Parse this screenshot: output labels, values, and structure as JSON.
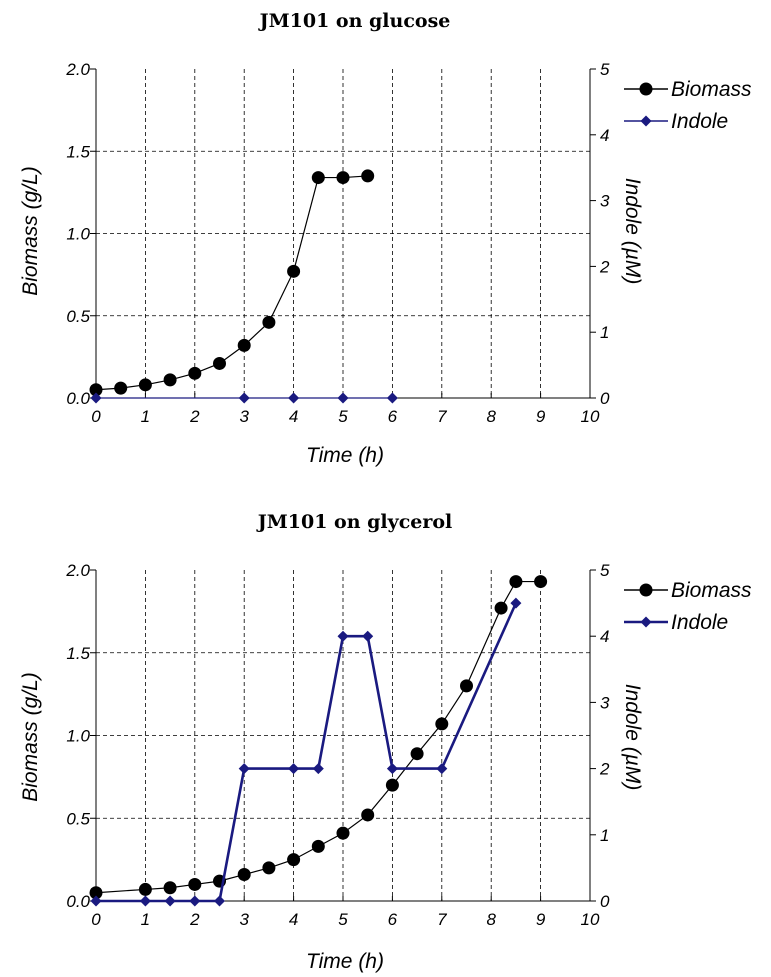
{
  "chart_data": [
    {
      "type": "line",
      "title": "JM101 on glucose",
      "xlabel": "Time (h)",
      "ylabel": "Biomass (g/L)",
      "y2label": "Indole (µM)",
      "xlim": [
        0,
        10
      ],
      "ylim": [
        0,
        2.0
      ],
      "y2lim": [
        0,
        5
      ],
      "x_ticks": [
        "0",
        "1",
        "2",
        "3",
        "4",
        "5",
        "6",
        "7",
        "8",
        "9",
        "10"
      ],
      "y_ticks": [
        "0.0",
        "0.5",
        "1.0",
        "1.5",
        "2.0"
      ],
      "y2_ticks": [
        "0",
        "1",
        "2",
        "3",
        "4",
        "5"
      ],
      "grid": true,
      "legend_position": "right",
      "series": [
        {
          "name": "Biomass",
          "axis": "left",
          "color": "#000000",
          "marker": "circle",
          "points": [
            [
              0,
              0.05
            ],
            [
              0.5,
              0.06
            ],
            [
              1,
              0.08
            ],
            [
              1.5,
              0.11
            ],
            [
              2,
              0.15
            ],
            [
              2.5,
              0.21
            ],
            [
              3,
              0.32
            ],
            [
              3.5,
              0.46
            ],
            [
              4,
              0.77
            ],
            [
              4.5,
              1.34
            ],
            [
              5,
              1.34
            ],
            [
              5.5,
              1.35
            ]
          ]
        },
        {
          "name": "Indole",
          "axis": "right",
          "color": "#1a1a80",
          "marker": "diamond",
          "points": [
            [
              0,
              0
            ],
            [
              3,
              0
            ],
            [
              4,
              0
            ],
            [
              5,
              0
            ],
            [
              6,
              0
            ]
          ]
        }
      ]
    },
    {
      "type": "line",
      "title": "JM101 on glycerol",
      "xlabel": "Time (h)",
      "ylabel": "Biomass (g/L)",
      "y2label": "Indole (µM)",
      "xlim": [
        0,
        10
      ],
      "ylim": [
        0,
        2.0
      ],
      "y2lim": [
        0,
        5
      ],
      "x_ticks": [
        "0",
        "1",
        "2",
        "3",
        "4",
        "5",
        "6",
        "7",
        "8",
        "9",
        "10"
      ],
      "y_ticks": [
        "0.0",
        "0.5",
        "1.0",
        "1.5",
        "2.0"
      ],
      "y2_ticks": [
        "0",
        "1",
        "2",
        "3",
        "4",
        "5"
      ],
      "grid": true,
      "legend_position": "right",
      "series": [
        {
          "name": "Biomass",
          "axis": "left",
          "color": "#000000",
          "marker": "circle",
          "points": [
            [
              0,
              0.05
            ],
            [
              1,
              0.07
            ],
            [
              1.5,
              0.08
            ],
            [
              2,
              0.1
            ],
            [
              2.5,
              0.12
            ],
            [
              3,
              0.16
            ],
            [
              3.5,
              0.2
            ],
            [
              4,
              0.25
            ],
            [
              4.5,
              0.33
            ],
            [
              5,
              0.41
            ],
            [
              5.5,
              0.52
            ],
            [
              6,
              0.7
            ],
            [
              6.5,
              0.89
            ],
            [
              7,
              1.07
            ],
            [
              7.5,
              1.3
            ],
            [
              8.2,
              1.77
            ],
            [
              8.5,
              1.93
            ],
            [
              9,
              1.93
            ]
          ]
        },
        {
          "name": "Indole",
          "axis": "right",
          "color": "#1a1a80",
          "marker": "diamond",
          "points": [
            [
              0,
              0
            ],
            [
              1,
              0
            ],
            [
              1.5,
              0
            ],
            [
              2,
              0
            ],
            [
              2.5,
              0
            ],
            [
              3,
              2
            ],
            [
              4,
              2
            ],
            [
              4.5,
              2
            ],
            [
              5,
              4
            ],
            [
              5.5,
              4
            ],
            [
              6,
              2
            ],
            [
              7,
              2
            ],
            [
              8.5,
              4.5
            ]
          ]
        }
      ]
    }
  ]
}
